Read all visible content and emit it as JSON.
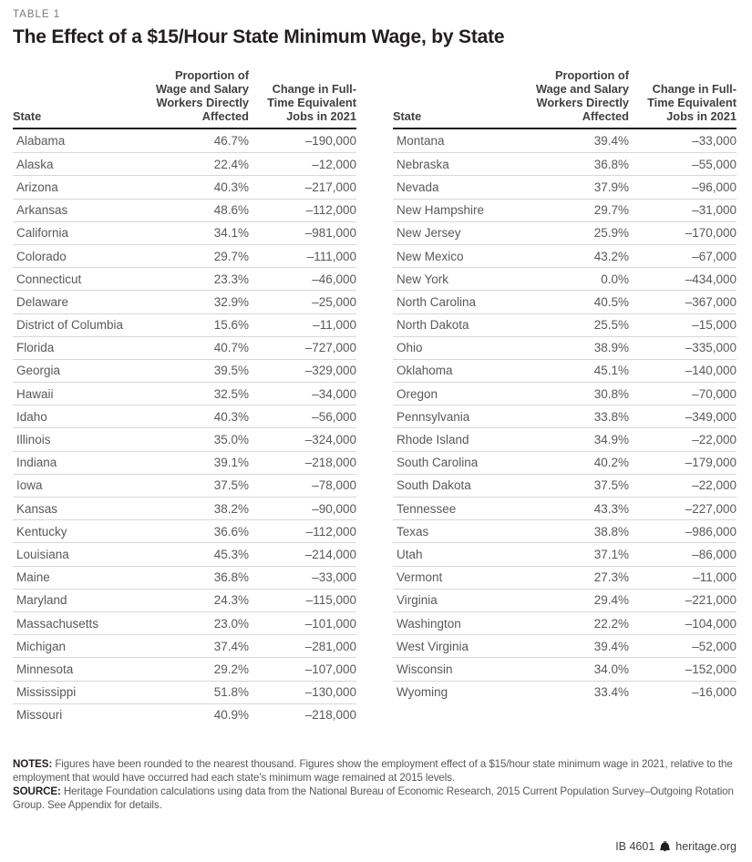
{
  "table_label": "TABLE 1",
  "title": "The Effect of a $15/Hour State Minimum Wage, by State",
  "headers": {
    "state": "State",
    "proportion": "Proportion of Wage and Salary Workers Directly Affected",
    "change": "Change in Full-Time Equivalent Jobs in 2021"
  },
  "chart_data": {
    "type": "table",
    "title": "The Effect of a $15/Hour State Minimum Wage, by State",
    "columns": [
      "State",
      "Proportion of Wage and Salary Workers Directly Affected",
      "Change in Full-Time Equivalent Jobs in 2021"
    ],
    "left_rows": [
      [
        "Alabama",
        "46.7%",
        "–190,000"
      ],
      [
        "Alaska",
        "22.4%",
        "–12,000"
      ],
      [
        "Arizona",
        "40.3%",
        "–217,000"
      ],
      [
        "Arkansas",
        "48.6%",
        "–112,000"
      ],
      [
        "California",
        "34.1%",
        "–981,000"
      ],
      [
        "Colorado",
        "29.7%",
        "–111,000"
      ],
      [
        "Connecticut",
        "23.3%",
        "–46,000"
      ],
      [
        "Delaware",
        "32.9%",
        "–25,000"
      ],
      [
        "District of Columbia",
        "15.6%",
        "–11,000"
      ],
      [
        "Florida",
        "40.7%",
        "–727,000"
      ],
      [
        "Georgia",
        "39.5%",
        "–329,000"
      ],
      [
        "Hawaii",
        "32.5%",
        "–34,000"
      ],
      [
        "Idaho",
        "40.3%",
        "–56,000"
      ],
      [
        "Illinois",
        "35.0%",
        "–324,000"
      ],
      [
        "Indiana",
        "39.1%",
        "–218,000"
      ],
      [
        "Iowa",
        "37.5%",
        "–78,000"
      ],
      [
        "Kansas",
        "38.2%",
        "–90,000"
      ],
      [
        "Kentucky",
        "36.6%",
        "–112,000"
      ],
      [
        "Louisiana",
        "45.3%",
        "–214,000"
      ],
      [
        "Maine",
        "36.8%",
        "–33,000"
      ],
      [
        "Maryland",
        "24.3%",
        "–115,000"
      ],
      [
        "Massachusetts",
        "23.0%",
        "–101,000"
      ],
      [
        "Michigan",
        "37.4%",
        "–281,000"
      ],
      [
        "Minnesota",
        "29.2%",
        "–107,000"
      ],
      [
        "Mississippi",
        "51.8%",
        "–130,000"
      ],
      [
        "Missouri",
        "40.9%",
        "–218,000"
      ]
    ],
    "right_rows": [
      [
        "Montana",
        "39.4%",
        "–33,000"
      ],
      [
        "Nebraska",
        "36.8%",
        "–55,000"
      ],
      [
        "Nevada",
        "37.9%",
        "–96,000"
      ],
      [
        "New Hampshire",
        "29.7%",
        "–31,000"
      ],
      [
        "New Jersey",
        "25.9%",
        "–170,000"
      ],
      [
        "New Mexico",
        "43.2%",
        "–67,000"
      ],
      [
        "New York",
        "0.0%",
        "–434,000"
      ],
      [
        "North Carolina",
        "40.5%",
        "–367,000"
      ],
      [
        "North Dakota",
        "25.5%",
        "–15,000"
      ],
      [
        "Ohio",
        "38.9%",
        "–335,000"
      ],
      [
        "Oklahoma",
        "45.1%",
        "–140,000"
      ],
      [
        "Oregon",
        "30.8%",
        "–70,000"
      ],
      [
        "Pennsylvania",
        "33.8%",
        "–349,000"
      ],
      [
        "Rhode Island",
        "34.9%",
        "–22,000"
      ],
      [
        "South Carolina",
        "40.2%",
        "–179,000"
      ],
      [
        "South Dakota",
        "37.5%",
        "–22,000"
      ],
      [
        "Tennessee",
        "43.3%",
        "–227,000"
      ],
      [
        "Texas",
        "38.8%",
        "–986,000"
      ],
      [
        "Utah",
        "37.1%",
        "–86,000"
      ],
      [
        "Vermont",
        "27.3%",
        "–11,000"
      ],
      [
        "Virginia",
        "29.4%",
        "–221,000"
      ],
      [
        "Washington",
        "22.2%",
        "–104,000"
      ],
      [
        "West Virginia",
        "39.4%",
        "–52,000"
      ],
      [
        "Wisconsin",
        "34.0%",
        "–152,000"
      ],
      [
        "Wyoming",
        "33.4%",
        "–16,000"
      ]
    ]
  },
  "notes": {
    "notes_label": "NOTES:",
    "notes_text": "Figures have been rounded to the nearest thousand. Figures show the employment effect of a $15/hour state minimum wage in 2021, relative to the employment that would have occurred had each state’s minimum wage remained at 2015 levels.",
    "source_label": "SOURCE:",
    "source_text": "Heritage Foundation calculations using data from the National Bureau of Economic Research, 2015 Current Population Survey–Outgoing Rotation Group. See Appendix for details."
  },
  "footer": {
    "report_id": "IB 4601",
    "site": "heritage.org"
  },
  "colors": {
    "title": "#231f20",
    "body_text": "#58595b",
    "eyebrow_gray": "#77787b",
    "header_rule": "#231f20",
    "row_rule": "#d8d8d9"
  }
}
